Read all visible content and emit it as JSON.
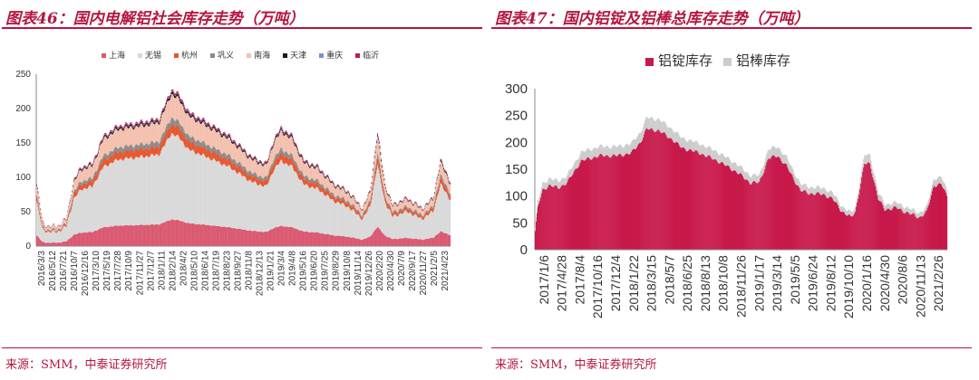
{
  "left": {
    "title": "图表46：国内电解铝社会库存走势（万吨）",
    "source": "来源：SMM，中泰证券研究所",
    "chart_data": {
      "type": "bar",
      "stacked": true,
      "title": "图表46：国内电解铝社会库存走势（万吨）",
      "xlabel": "",
      "ylabel": "",
      "ylim": [
        0,
        250
      ],
      "yticks": [
        0,
        50,
        100,
        150,
        200,
        250
      ],
      "x_tick_labels": [
        "2016/3/3",
        "2016/5/12",
        "2016/7/21",
        "2016/10/7",
        "2016/12/16",
        "2017/3/10",
        "2017/5/19",
        "2017/7/28",
        "2017/10/9",
        "2017/11/27",
        "2017/12/7",
        "2018/1/11",
        "2018/2/14",
        "2018/4/2",
        "2018/5/10",
        "2018/6/14",
        "2018/7/19",
        "2018/8/23",
        "2018/9/27",
        "2018/11/8",
        "2018/12/13",
        "2019/1/21",
        "2019/3/4",
        "2019/4/8",
        "2019/5/16",
        "2019/6/20",
        "2019/7/25",
        "2019/8/29",
        "2019/10/8",
        "2019/11/14",
        "2019/12/26",
        "2020/2/20",
        "2020/4/30",
        "2020/7/9",
        "2020/9/17",
        "2020/11/27",
        "2021/2/5",
        "2021/4/23"
      ],
      "legend": [
        "上海",
        "无锡",
        "杭州",
        "巩义",
        "南海",
        "天津",
        "重庆",
        "临沂"
      ],
      "colors": [
        "#d9576f",
        "#d9d9d9",
        "#e8542b",
        "#8a8a8a",
        "#f4c0ae",
        "#1a1a1a",
        "#7b8fd6",
        "#c2185b"
      ],
      "anchor_totals": [
        [
          0,
          90
        ],
        [
          8,
          35
        ],
        [
          16,
          28
        ],
        [
          30,
          30
        ],
        [
          40,
          40
        ],
        [
          50,
          95
        ],
        [
          60,
          115
        ],
        [
          75,
          120
        ],
        [
          90,
          160
        ],
        [
          110,
          175
        ],
        [
          140,
          180
        ],
        [
          165,
          185
        ],
        [
          175,
          210
        ],
        [
          182,
          228
        ],
        [
          192,
          220
        ],
        [
          205,
          195
        ],
        [
          230,
          180
        ],
        [
          260,
          160
        ],
        [
          290,
          130
        ],
        [
          310,
          120
        ],
        [
          320,
          155
        ],
        [
          330,
          172
        ],
        [
          345,
          160
        ],
        [
          360,
          125
        ],
        [
          380,
          115
        ],
        [
          400,
          92
        ],
        [
          420,
          80
        ],
        [
          440,
          55
        ],
        [
          450,
          80
        ],
        [
          460,
          165
        ],
        [
          470,
          90
        ],
        [
          480,
          60
        ],
        [
          500,
          70
        ],
        [
          520,
          55
        ],
        [
          535,
          70
        ],
        [
          545,
          125
        ],
        [
          558,
          95
        ]
      ],
      "series_fractions": {
        "上海": 0.17,
        "无锡": 0.55,
        "杭州": 0.06,
        "巩义": 0.04,
        "南海": 0.15,
        "天津": 0.015,
        "重庆": 0.005,
        "临沂": 0.01
      },
      "n_points": 559
    }
  },
  "right": {
    "title": "图表47：国内铝锭及铝棒总库存走势（万吨）",
    "source": "来源：SMM，中泰证券研究所",
    "chart_data": {
      "type": "bar",
      "stacked": true,
      "title": "图表47：国内铝锭及铝棒总库存走势（万吨）",
      "xlabel": "",
      "ylabel": "",
      "ylim": [
        0,
        300
      ],
      "yticks": [
        0,
        50,
        100,
        150,
        200,
        250,
        300
      ],
      "x_tick_labels": [
        "2017/1/6",
        "2017/4/28",
        "2017/8/4",
        "2017/10/16",
        "2017/12/4",
        "2018/1/22",
        "2018/3/15",
        "2018/5/7",
        "2018/6/25",
        "2018/8/13",
        "2018/10/8",
        "2018/11/26",
        "2019/1/17",
        "2019/3/14",
        "2019/5/5",
        "2019/6/24",
        "2019/8/12",
        "2019/10/10",
        "2020/1/16",
        "2020/4/30",
        "2020/8/6",
        "2020/11/13",
        "2021/2/26"
      ],
      "legend": [
        "铝锭库存",
        "铝棒库存"
      ],
      "colors": [
        "#c8194b",
        "#cccccc"
      ],
      "anchor_ingot": [
        [
          0,
          35
        ],
        [
          3,
          80
        ],
        [
          8,
          110
        ],
        [
          15,
          120
        ],
        [
          25,
          115
        ],
        [
          35,
          125
        ],
        [
          50,
          165
        ],
        [
          70,
          175
        ],
        [
          90,
          175
        ],
        [
          105,
          180
        ],
        [
          115,
          200
        ],
        [
          122,
          225
        ],
        [
          135,
          222
        ],
        [
          150,
          205
        ],
        [
          160,
          190
        ],
        [
          180,
          180
        ],
        [
          200,
          165
        ],
        [
          220,
          145
        ],
        [
          235,
          125
        ],
        [
          245,
          125
        ],
        [
          255,
          170
        ],
        [
          265,
          175
        ],
        [
          275,
          155
        ],
        [
          290,
          110
        ],
        [
          300,
          105
        ],
        [
          315,
          103
        ],
        [
          325,
          95
        ],
        [
          335,
          72
        ],
        [
          345,
          60
        ],
        [
          350,
          70
        ],
        [
          360,
          160
        ],
        [
          366,
          160
        ],
        [
          375,
          95
        ],
        [
          382,
          75
        ],
        [
          395,
          78
        ],
        [
          405,
          70
        ],
        [
          420,
          60
        ],
        [
          428,
          70
        ],
        [
          436,
          120
        ],
        [
          444,
          122
        ],
        [
          450,
          100
        ]
      ],
      "rod_fraction": 0.075,
      "n_points": 451
    }
  }
}
